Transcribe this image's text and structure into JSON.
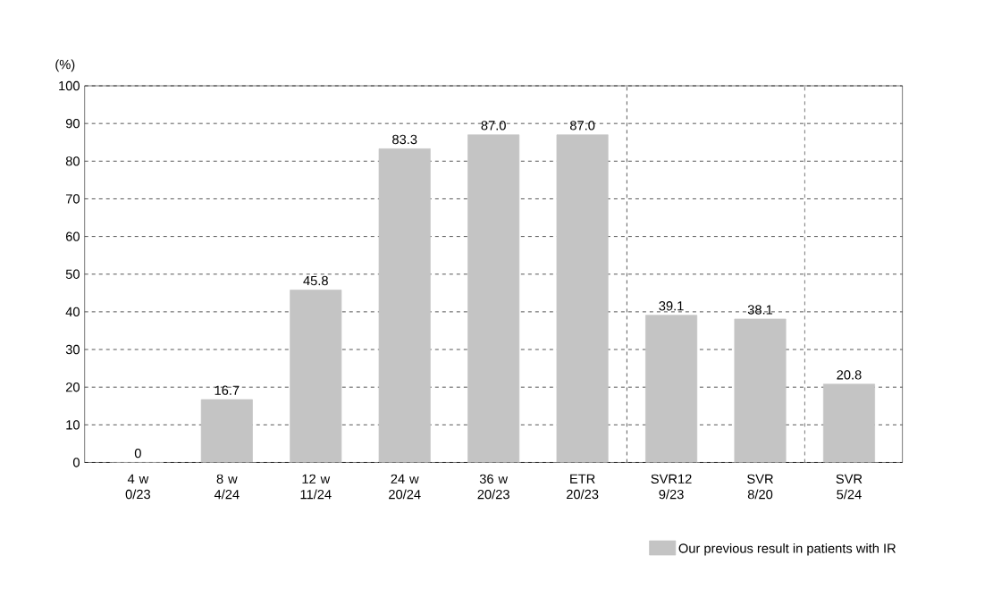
{
  "chart_data": {
    "type": "bar",
    "ylabel": "(%)",
    "categories": [
      "4 w 0/23",
      "8 w 4/24",
      "12 w 11/24",
      "24 w 20/24",
      "36 w 20/23",
      "ETR 20/23",
      "SVR12 9/23",
      "SVR 8/20",
      "SVR 5/24"
    ],
    "series": [
      {
        "name": "Our previous result in patients with IR",
        "color": "#c4c4c4",
        "values": [
          0,
          16.7,
          45.8,
          83.3,
          87.0,
          87.0,
          39.1,
          38.1,
          20.8
        ],
        "value_labels": [
          "0",
          "16.7",
          "45.8",
          "83.3",
          "87.0",
          "87.0",
          "39.1",
          "38.1",
          "20.8"
        ]
      }
    ],
    "ylim": [
      0,
      100
    ],
    "yticks": [
      0,
      10,
      20,
      30,
      40,
      50,
      60,
      70,
      80,
      90,
      100
    ],
    "grid": "y",
    "legend": "bottom right"
  }
}
